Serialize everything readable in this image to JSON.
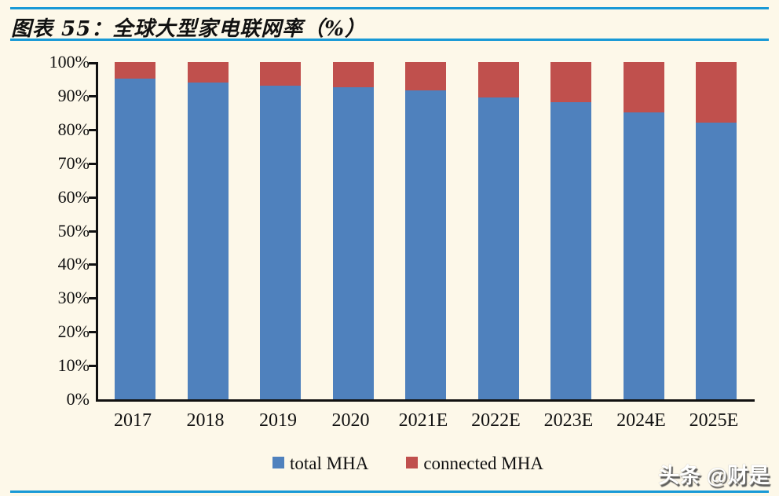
{
  "header": {
    "title": "图表 55：全球大型家电联网率（%）"
  },
  "chart_data": {
    "type": "bar",
    "stacked": true,
    "title": "全球大型家电联网率（%）",
    "categories": [
      "2017",
      "2018",
      "2019",
      "2020",
      "2021E",
      "2022E",
      "2023E",
      "2024E",
      "2025E"
    ],
    "series": [
      {
        "name": "total MHA",
        "color": "#4F81BD",
        "values": [
          95,
          94,
          93,
          92.5,
          91.5,
          89.5,
          88,
          85,
          82
        ]
      },
      {
        "name": "connected MHA",
        "color": "#C0504D",
        "values": [
          5,
          6,
          7,
          7.5,
          8.5,
          10.5,
          12,
          15,
          18
        ]
      }
    ],
    "ylim": [
      0,
      100
    ],
    "ytick_step": 10,
    "ytick_suffix": "%",
    "grid": false,
    "legend_position": "bottom"
  },
  "legend": {
    "items": [
      {
        "label": "total MHA",
        "color": "#4F81BD"
      },
      {
        "label": "connected MHA",
        "color": "#C0504D"
      }
    ]
  },
  "watermark": {
    "text": "头条 @财是"
  },
  "colors": {
    "background": "#FDF8E9",
    "rule_blue": "#1899D6",
    "axis_black": "#111111",
    "bar_blue": "#4F81BD",
    "bar_red": "#C0504D"
  }
}
